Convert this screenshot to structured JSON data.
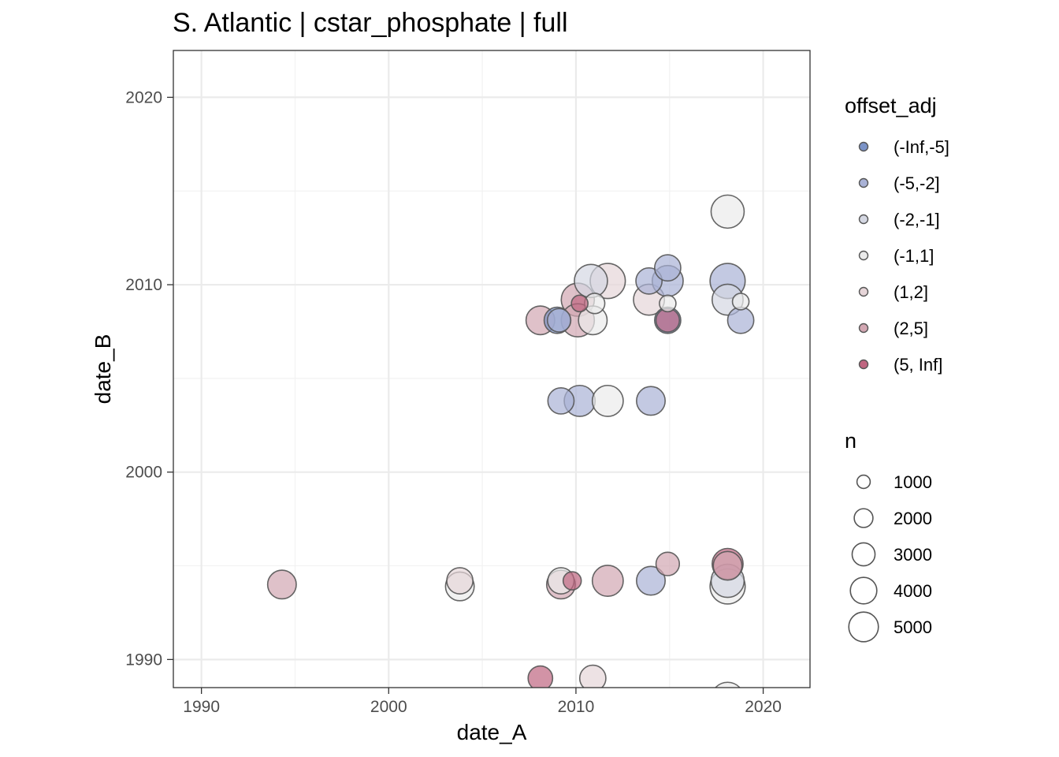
{
  "chart_data": {
    "type": "scatter",
    "title": "S. Atlantic | cstar_phosphate | full",
    "xlabel": "date_A",
    "ylabel": "date_B",
    "xlim": [
      1988.5,
      2022.5
    ],
    "ylim": [
      1988.5,
      2022.5
    ],
    "x_ticks": [
      1990,
      2000,
      2010,
      2020
    ],
    "y_ticks": [
      1990,
      2000,
      2010,
      2020
    ],
    "x_tick_labels": [
      "1990",
      "2000",
      "2010",
      "2020"
    ],
    "y_tick_labels": [
      "1990",
      "2000",
      "2010",
      "2020"
    ],
    "grid": true,
    "legend_position": "right",
    "color_legend": {
      "title": "offset_adj",
      "items": [
        {
          "label": "(-Inf,-5]",
          "color": "#7b93c7"
        },
        {
          "label": "(-5,-2]",
          "color": "#a9b2d6"
        },
        {
          "label": "(-2,-1]",
          "color": "#d4d7e2"
        },
        {
          "label": "(-1,1]",
          "color": "#ebebeb"
        },
        {
          "label": "(1,2]",
          "color": "#e6d5d8"
        },
        {
          "label": "(2,5]",
          "color": "#d2a7b2"
        },
        {
          "label": "(5, Inf]",
          "color": "#bf6580"
        }
      ]
    },
    "size_legend": {
      "title": "n",
      "items": [
        {
          "label": "1000",
          "value": 1000
        },
        {
          "label": "2000",
          "value": 2000
        },
        {
          "label": "3000",
          "value": 3000
        },
        {
          "label": "4000",
          "value": 4000
        },
        {
          "label": "5000",
          "value": 5000
        }
      ]
    },
    "points": [
      {
        "x": 1994.3,
        "y": 1994.0,
        "n": 3000,
        "c": "(2,5]"
      },
      {
        "x": 2003.8,
        "y": 1994.2,
        "n": 2500,
        "c": "(1,2]"
      },
      {
        "x": 2003.8,
        "y": 1993.9,
        "n": 3000,
        "c": "(-1,1]"
      },
      {
        "x": 2008.1,
        "y": 1989.0,
        "n": 2200,
        "c": "(5, Inf]"
      },
      {
        "x": 2008.1,
        "y": 2008.1,
        "n": 3000,
        "c": "(2,5]"
      },
      {
        "x": 2009.0,
        "y": 2008.1,
        "n": 2500,
        "c": "(-Inf,-5]"
      },
      {
        "x": 2009.1,
        "y": 2008.1,
        "n": 2000,
        "c": "(-5,-2]"
      },
      {
        "x": 2009.2,
        "y": 2003.8,
        "n": 2500,
        "c": "(-5,-2]"
      },
      {
        "x": 2009.2,
        "y": 1994.2,
        "n": 2500,
        "c": "(-1,1]"
      },
      {
        "x": 2009.2,
        "y": 1994.0,
        "n": 3000,
        "c": "(2,5]"
      },
      {
        "x": 2009.8,
        "y": 1994.2,
        "n": 1200,
        "c": "(5, Inf]"
      },
      {
        "x": 2010.1,
        "y": 2009.2,
        "n": 4000,
        "c": "(2,5]"
      },
      {
        "x": 2010.2,
        "y": 2009.0,
        "n": 1000,
        "c": "(5, Inf]"
      },
      {
        "x": 2010.1,
        "y": 2008.1,
        "n": 4000,
        "c": "(2,5]"
      },
      {
        "x": 2010.2,
        "y": 2003.8,
        "n": 3500,
        "c": "(-5,-2]"
      },
      {
        "x": 2010.8,
        "y": 2010.2,
        "n": 4000,
        "c": "(-2,-1]"
      },
      {
        "x": 2011.0,
        "y": 2009.0,
        "n": 1500,
        "c": "(-1,1]"
      },
      {
        "x": 2010.9,
        "y": 2008.1,
        "n": 3000,
        "c": "(-1,1]"
      },
      {
        "x": 2010.9,
        "y": 1989.0,
        "n": 2500,
        "c": "(1,2]"
      },
      {
        "x": 2011.7,
        "y": 2010.2,
        "n": 4500,
        "c": "(1,2]"
      },
      {
        "x": 2011.7,
        "y": 2003.8,
        "n": 3500,
        "c": "(-1,1]"
      },
      {
        "x": 2011.7,
        "y": 1994.2,
        "n": 3500,
        "c": "(2,5]"
      },
      {
        "x": 2013.9,
        "y": 2010.2,
        "n": 2500,
        "c": "(-5,-2]"
      },
      {
        "x": 2013.9,
        "y": 2009.2,
        "n": 3500,
        "c": "(1,2]"
      },
      {
        "x": 2014.0,
        "y": 2003.8,
        "n": 3000,
        "c": "(-5,-2]"
      },
      {
        "x": 2014.0,
        "y": 1994.2,
        "n": 3000,
        "c": "(-5,-2]"
      },
      {
        "x": 2014.9,
        "y": 2010.9,
        "n": 2500,
        "c": "(-5,-2]"
      },
      {
        "x": 2014.9,
        "y": 2010.2,
        "n": 3500,
        "c": "(-5,-2]"
      },
      {
        "x": 2014.9,
        "y": 2009.0,
        "n": 1000,
        "c": "(-1,1]"
      },
      {
        "x": 2014.9,
        "y": 2008.1,
        "n": 2500,
        "c": "(-Inf,-5]"
      },
      {
        "x": 2014.9,
        "y": 2008.1,
        "n": 2000,
        "c": "(5, Inf]"
      },
      {
        "x": 2014.9,
        "y": 1995.1,
        "n": 2000,
        "c": "(2,5]"
      },
      {
        "x": 2018.1,
        "y": 2013.9,
        "n": 4000,
        "c": "(-1,1]"
      },
      {
        "x": 2018.1,
        "y": 2010.2,
        "n": 4500,
        "c": "(-5,-2]"
      },
      {
        "x": 2018.1,
        "y": 2009.2,
        "n": 3500,
        "c": "(-2,-1]"
      },
      {
        "x": 2018.8,
        "y": 2009.1,
        "n": 1000,
        "c": "(-1,1]"
      },
      {
        "x": 2018.8,
        "y": 2008.1,
        "n": 2500,
        "c": "(-5,-2]"
      },
      {
        "x": 2018.1,
        "y": 1995.1,
        "n": 3500,
        "c": "(5, Inf]"
      },
      {
        "x": 2018.1,
        "y": 1995.0,
        "n": 3000,
        "c": "(2,5]"
      },
      {
        "x": 2018.1,
        "y": 1994.2,
        "n": 4000,
        "c": "(-2,-1]"
      },
      {
        "x": 2018.1,
        "y": 1993.9,
        "n": 4500,
        "c": "(-1,1]"
      },
      {
        "x": 2018.1,
        "y": 1987.9,
        "n": 4000,
        "c": "(-1,1]"
      }
    ]
  }
}
